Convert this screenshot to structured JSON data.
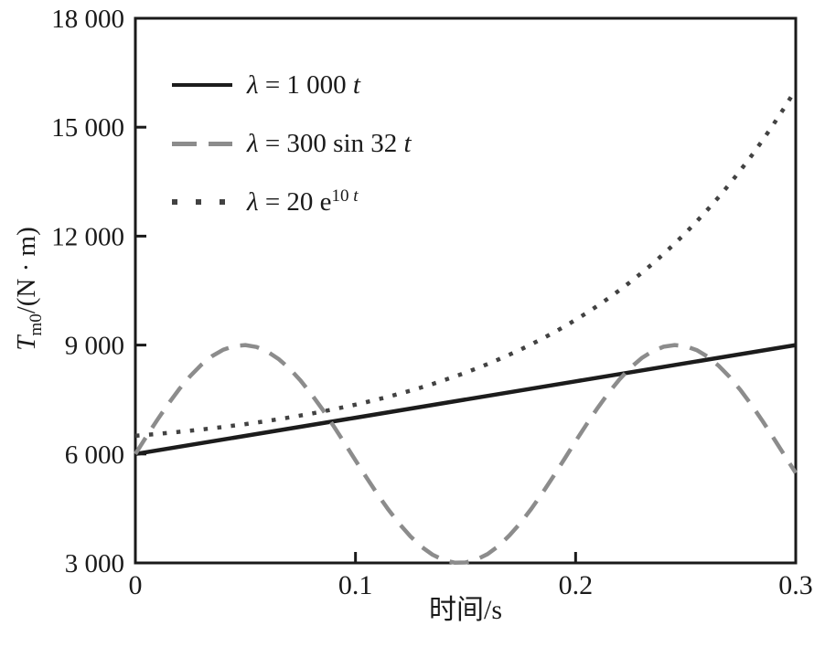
{
  "figure": {
    "background": "#ffffff",
    "axis_color": "#1a1a1a",
    "text_color": "#1a1a1a"
  },
  "chart_data": {
    "type": "line",
    "title": "",
    "xlabel": "时间/s",
    "ylabel": "T_m0/(N · m)",
    "ylabel_parts": {
      "var": "T",
      "sub": "m0",
      "rest": "/(N · m)"
    },
    "xlim": [
      0,
      0.3
    ],
    "ylim": [
      3000,
      18000
    ],
    "grid": false,
    "legend_position": "upper-left-inside",
    "xticks": {
      "values": [
        0,
        0.1,
        0.2,
        0.3
      ],
      "labels": [
        "0",
        "0.1",
        "0.2",
        "0.3"
      ]
    },
    "yticks": {
      "values": [
        3000,
        6000,
        9000,
        12000,
        15000,
        18000
      ],
      "labels": [
        "3 000",
        "6 000",
        "9 000",
        "12 000",
        "15 000",
        "18 000"
      ]
    },
    "series": [
      {
        "name": "lambda-1000t",
        "label": "λ = 1 000 t",
        "legend_parts": {
          "sym": "λ",
          "eq": " = 1 000 ",
          "var": "t",
          "sup_num": "",
          "sup_var": ""
        },
        "style": "solid",
        "color": "#1c1c1c",
        "width": 4.5,
        "dash": null,
        "t_start": 0,
        "t_step": 0.1,
        "T": [
          6000,
          7000,
          8000,
          9000
        ]
      },
      {
        "name": "lambda-300sin32t",
        "label": "λ = 300 sin 32 t",
        "legend_parts": {
          "sym": "λ",
          "eq": " = 300 sin 32 ",
          "var": "t",
          "sup_num": "",
          "sup_var": ""
        },
        "style": "dashed",
        "color": "#8c8c8c",
        "width": 4.5,
        "dash": [
          21,
          13
        ],
        "t_start": 0,
        "t_step": 0.005,
        "T": [
          6000,
          6478,
          6944,
          7385,
          7792,
          8152,
          8458,
          8700,
          8874,
          8974,
          8999,
          8946,
          8819,
          8619,
          8354,
          8026,
          7646,
          7228,
          6776,
          6304,
          5825,
          5350,
          4892,
          4462,
          4072,
          3730,
          3444,
          3227,
          3081,
          3008,
          3012,
          3092,
          3244,
          3468,
          3760,
          4106,
          4501,
          4933,
          5395,
          5870,
          6350,
          6820,
          7269,
          7686,
          8060,
          8381,
          8641,
          8833,
          8955,
          9000,
          8968,
          8862,
          8681,
          8429,
          8120,
          7755,
          7345,
          6900,
          6433,
          5954,
          5477
        ]
      },
      {
        "name": "lambda-20e10t",
        "label": "λ = 20 e^(10 t)",
        "legend_parts": {
          "sym": "λ",
          "eq": " = 20 e",
          "var": "",
          "sup_num": "10 ",
          "sup_var": "t"
        },
        "style": "dotted",
        "color": "#424242",
        "width": 4.5,
        "dash": [
          4.5,
          10.5
        ],
        "t_start": 0,
        "t_step": 0.005,
        "T": [
          6500,
          6526,
          6553,
          6581,
          6611,
          6642,
          6675,
          6710,
          6746,
          6784,
          6824,
          6867,
          6911,
          6958,
          7007,
          7059,
          7113,
          7170,
          7230,
          7293,
          7359,
          7429,
          7502,
          7579,
          7660,
          7745,
          7835,
          7929,
          8028,
          8132,
          8241,
          8356,
          8477,
          8604,
          8737,
          8877,
          9025,
          9180,
          9343,
          9514,
          9695,
          9884,
          10083,
          10292,
          10513,
          10744,
          10987,
          11243,
          11512,
          11794,
          12091,
          12404,
          12732,
          13077,
          13440,
          13821,
          14222,
          14644,
          15087,
          15553,
          16043
        ]
      }
    ]
  }
}
